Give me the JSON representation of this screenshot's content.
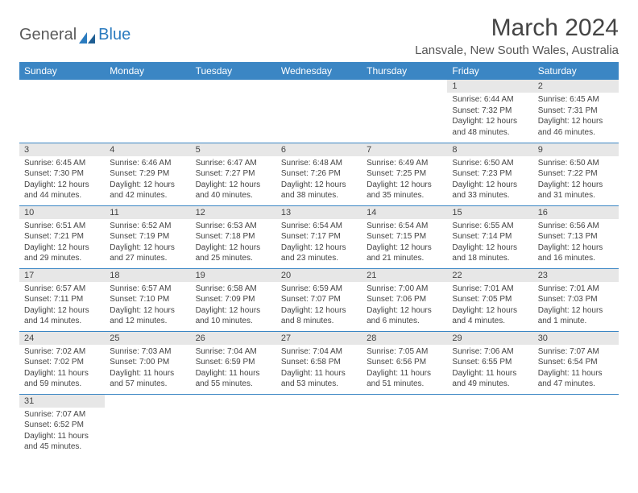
{
  "logo": {
    "part1": "General",
    "part2": "Blue"
  },
  "title": "March 2024",
  "location": "Lansvale, New South Wales, Australia",
  "colors": {
    "header_bg": "#3b86c4",
    "header_text": "#ffffff",
    "daynum_bg": "#e7e7e7",
    "border": "#3b86c4",
    "text": "#444444",
    "logo_gray": "#5a5a5a",
    "logo_blue": "#2b7bbf"
  },
  "weekdays": [
    "Sunday",
    "Monday",
    "Tuesday",
    "Wednesday",
    "Thursday",
    "Friday",
    "Saturday"
  ],
  "weeks": [
    [
      {
        "day": "",
        "lines": []
      },
      {
        "day": "",
        "lines": []
      },
      {
        "day": "",
        "lines": []
      },
      {
        "day": "",
        "lines": []
      },
      {
        "day": "",
        "lines": []
      },
      {
        "day": "1",
        "lines": [
          "Sunrise: 6:44 AM",
          "Sunset: 7:32 PM",
          "Daylight: 12 hours",
          "and 48 minutes."
        ]
      },
      {
        "day": "2",
        "lines": [
          "Sunrise: 6:45 AM",
          "Sunset: 7:31 PM",
          "Daylight: 12 hours",
          "and 46 minutes."
        ]
      }
    ],
    [
      {
        "day": "3",
        "lines": [
          "Sunrise: 6:45 AM",
          "Sunset: 7:30 PM",
          "Daylight: 12 hours",
          "and 44 minutes."
        ]
      },
      {
        "day": "4",
        "lines": [
          "Sunrise: 6:46 AM",
          "Sunset: 7:29 PM",
          "Daylight: 12 hours",
          "and 42 minutes."
        ]
      },
      {
        "day": "5",
        "lines": [
          "Sunrise: 6:47 AM",
          "Sunset: 7:27 PM",
          "Daylight: 12 hours",
          "and 40 minutes."
        ]
      },
      {
        "day": "6",
        "lines": [
          "Sunrise: 6:48 AM",
          "Sunset: 7:26 PM",
          "Daylight: 12 hours",
          "and 38 minutes."
        ]
      },
      {
        "day": "7",
        "lines": [
          "Sunrise: 6:49 AM",
          "Sunset: 7:25 PM",
          "Daylight: 12 hours",
          "and 35 minutes."
        ]
      },
      {
        "day": "8",
        "lines": [
          "Sunrise: 6:50 AM",
          "Sunset: 7:23 PM",
          "Daylight: 12 hours",
          "and 33 minutes."
        ]
      },
      {
        "day": "9",
        "lines": [
          "Sunrise: 6:50 AM",
          "Sunset: 7:22 PM",
          "Daylight: 12 hours",
          "and 31 minutes."
        ]
      }
    ],
    [
      {
        "day": "10",
        "lines": [
          "Sunrise: 6:51 AM",
          "Sunset: 7:21 PM",
          "Daylight: 12 hours",
          "and 29 minutes."
        ]
      },
      {
        "day": "11",
        "lines": [
          "Sunrise: 6:52 AM",
          "Sunset: 7:19 PM",
          "Daylight: 12 hours",
          "and 27 minutes."
        ]
      },
      {
        "day": "12",
        "lines": [
          "Sunrise: 6:53 AM",
          "Sunset: 7:18 PM",
          "Daylight: 12 hours",
          "and 25 minutes."
        ]
      },
      {
        "day": "13",
        "lines": [
          "Sunrise: 6:54 AM",
          "Sunset: 7:17 PM",
          "Daylight: 12 hours",
          "and 23 minutes."
        ]
      },
      {
        "day": "14",
        "lines": [
          "Sunrise: 6:54 AM",
          "Sunset: 7:15 PM",
          "Daylight: 12 hours",
          "and 21 minutes."
        ]
      },
      {
        "day": "15",
        "lines": [
          "Sunrise: 6:55 AM",
          "Sunset: 7:14 PM",
          "Daylight: 12 hours",
          "and 18 minutes."
        ]
      },
      {
        "day": "16",
        "lines": [
          "Sunrise: 6:56 AM",
          "Sunset: 7:13 PM",
          "Daylight: 12 hours",
          "and 16 minutes."
        ]
      }
    ],
    [
      {
        "day": "17",
        "lines": [
          "Sunrise: 6:57 AM",
          "Sunset: 7:11 PM",
          "Daylight: 12 hours",
          "and 14 minutes."
        ]
      },
      {
        "day": "18",
        "lines": [
          "Sunrise: 6:57 AM",
          "Sunset: 7:10 PM",
          "Daylight: 12 hours",
          "and 12 minutes."
        ]
      },
      {
        "day": "19",
        "lines": [
          "Sunrise: 6:58 AM",
          "Sunset: 7:09 PM",
          "Daylight: 12 hours",
          "and 10 minutes."
        ]
      },
      {
        "day": "20",
        "lines": [
          "Sunrise: 6:59 AM",
          "Sunset: 7:07 PM",
          "Daylight: 12 hours",
          "and 8 minutes."
        ]
      },
      {
        "day": "21",
        "lines": [
          "Sunrise: 7:00 AM",
          "Sunset: 7:06 PM",
          "Daylight: 12 hours",
          "and 6 minutes."
        ]
      },
      {
        "day": "22",
        "lines": [
          "Sunrise: 7:01 AM",
          "Sunset: 7:05 PM",
          "Daylight: 12 hours",
          "and 4 minutes."
        ]
      },
      {
        "day": "23",
        "lines": [
          "Sunrise: 7:01 AM",
          "Sunset: 7:03 PM",
          "Daylight: 12 hours",
          "and 1 minute."
        ]
      }
    ],
    [
      {
        "day": "24",
        "lines": [
          "Sunrise: 7:02 AM",
          "Sunset: 7:02 PM",
          "Daylight: 11 hours",
          "and 59 minutes."
        ]
      },
      {
        "day": "25",
        "lines": [
          "Sunrise: 7:03 AM",
          "Sunset: 7:00 PM",
          "Daylight: 11 hours",
          "and 57 minutes."
        ]
      },
      {
        "day": "26",
        "lines": [
          "Sunrise: 7:04 AM",
          "Sunset: 6:59 PM",
          "Daylight: 11 hours",
          "and 55 minutes."
        ]
      },
      {
        "day": "27",
        "lines": [
          "Sunrise: 7:04 AM",
          "Sunset: 6:58 PM",
          "Daylight: 11 hours",
          "and 53 minutes."
        ]
      },
      {
        "day": "28",
        "lines": [
          "Sunrise: 7:05 AM",
          "Sunset: 6:56 PM",
          "Daylight: 11 hours",
          "and 51 minutes."
        ]
      },
      {
        "day": "29",
        "lines": [
          "Sunrise: 7:06 AM",
          "Sunset: 6:55 PM",
          "Daylight: 11 hours",
          "and 49 minutes."
        ]
      },
      {
        "day": "30",
        "lines": [
          "Sunrise: 7:07 AM",
          "Sunset: 6:54 PM",
          "Daylight: 11 hours",
          "and 47 minutes."
        ]
      }
    ],
    [
      {
        "day": "31",
        "lines": [
          "Sunrise: 7:07 AM",
          "Sunset: 6:52 PM",
          "Daylight: 11 hours",
          "and 45 minutes."
        ]
      },
      {
        "day": "",
        "lines": []
      },
      {
        "day": "",
        "lines": []
      },
      {
        "day": "",
        "lines": []
      },
      {
        "day": "",
        "lines": []
      },
      {
        "day": "",
        "lines": []
      },
      {
        "day": "",
        "lines": []
      }
    ]
  ]
}
